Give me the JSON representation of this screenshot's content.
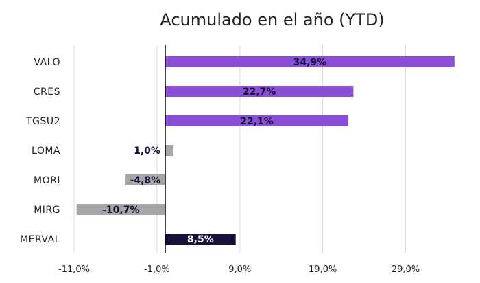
{
  "chart_data": {
    "type": "bar",
    "orientation": "horizontal",
    "title": "Acumulado en el año (YTD)",
    "categories": [
      "VALO",
      "CRES",
      "TGSU2",
      "LOMA",
      "MORI",
      "MIRG",
      "MERVAL"
    ],
    "values": [
      34.9,
      22.7,
      22.1,
      1.0,
      -4.8,
      -10.7,
      8.5
    ],
    "value_labels": [
      "34,9%",
      "22,7%",
      "22,1%",
      "1,0%",
      "-4,8%",
      "-10,7%",
      "8,5%"
    ],
    "bar_colors": [
      "#8a4fd6",
      "#8a4fd6",
      "#8a4fd6",
      "#a6a6a6",
      "#a6a6a6",
      "#a6a6a6",
      "#15123a"
    ],
    "x_ticks": [
      -11,
      -1,
      9,
      19,
      29
    ],
    "x_tick_labels": [
      "-11,0%",
      "-1,0%",
      "9,0%",
      "19,0%",
      "29,0%"
    ],
    "xlim": [
      -11,
      35
    ],
    "grid": "vertical",
    "legend": "none"
  }
}
